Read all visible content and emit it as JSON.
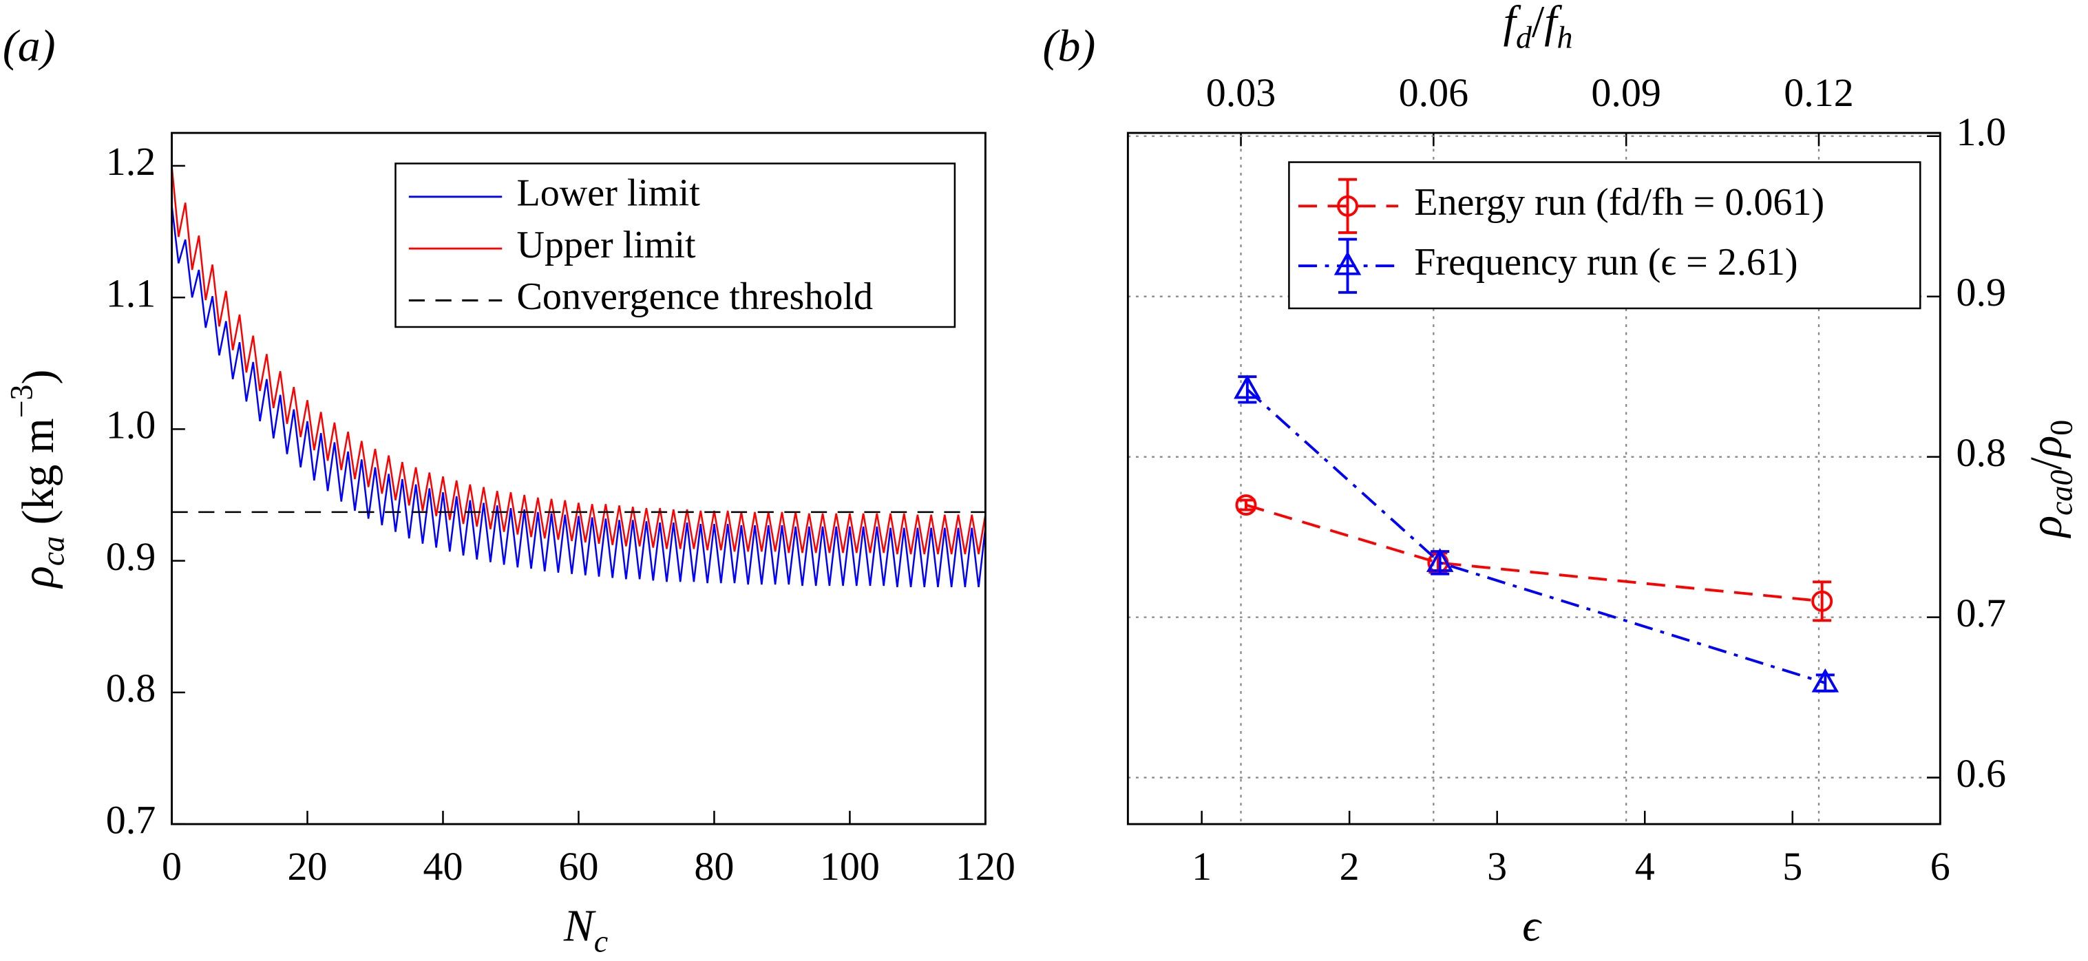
{
  "chart_data": [
    {
      "type": "line",
      "label": "(a)",
      "x": [
        0,
        1,
        2,
        3,
        4,
        5,
        6,
        7,
        8,
        9,
        10,
        11,
        12,
        13,
        14,
        15,
        16,
        17,
        18,
        19,
        20,
        21,
        22,
        23,
        24,
        25,
        26,
        27,
        28,
        29,
        30,
        31,
        32,
        33,
        34,
        35,
        36,
        37,
        38,
        39,
        40,
        41,
        42,
        43,
        44,
        45,
        46,
        47,
        48,
        49,
        50,
        51,
        52,
        53,
        54,
        55,
        56,
        57,
        58,
        59,
        60,
        61,
        62,
        63,
        64,
        65,
        66,
        67,
        68,
        69,
        70,
        71,
        72,
        73,
        74,
        75,
        76,
        77,
        78,
        79,
        80,
        81,
        82,
        83,
        84,
        85,
        86,
        87,
        88,
        89,
        90,
        91,
        92,
        93,
        94,
        95,
        96,
        97,
        98,
        99,
        100,
        101,
        102,
        103,
        104,
        105,
        106,
        107,
        108,
        109,
        110,
        111,
        112,
        113,
        114,
        115,
        116,
        117,
        118,
        119,
        120
      ],
      "series": [
        {
          "name": "Lower limit",
          "color": "#0000ff",
          "values": [
            1.17,
            1.126,
            1.144,
            1.1,
            1.121,
            1.077,
            1.101,
            1.056,
            1.082,
            1.038,
            1.066,
            1.021,
            1.051,
            1.006,
            1.038,
            0.993,
            1.026,
            0.981,
            1.015,
            0.971,
            1.006,
            0.961,
            0.997,
            0.953,
            0.99,
            0.945,
            0.983,
            0.938,
            0.977,
            0.932,
            0.971,
            0.927,
            0.966,
            0.922,
            0.962,
            0.917,
            0.958,
            0.913,
            0.955,
            0.91,
            0.952,
            0.907,
            0.949,
            0.904,
            0.946,
            0.901,
            0.944,
            0.899,
            0.942,
            0.897,
            0.94,
            0.895,
            0.939,
            0.894,
            0.937,
            0.892,
            0.936,
            0.891,
            0.935,
            0.89,
            0.934,
            0.889,
            0.933,
            0.888,
            0.932,
            0.887,
            0.931,
            0.886,
            0.931,
            0.886,
            0.93,
            0.885,
            0.929,
            0.884,
            0.929,
            0.884,
            0.929,
            0.884,
            0.928,
            0.883,
            0.928,
            0.883,
            0.928,
            0.883,
            0.927,
            0.882,
            0.927,
            0.882,
            0.927,
            0.882,
            0.927,
            0.882,
            0.926,
            0.881,
            0.926,
            0.881,
            0.926,
            0.881,
            0.926,
            0.881,
            0.926,
            0.881,
            0.926,
            0.881,
            0.926,
            0.881,
            0.925,
            0.88,
            0.925,
            0.88,
            0.925,
            0.88,
            0.925,
            0.88,
            0.925,
            0.88,
            0.925,
            0.88,
            0.925,
            0.88,
            0.925
          ]
        },
        {
          "name": "Upper limit",
          "color": "#ff0000",
          "values": [
            1.2,
            1.146,
            1.172,
            1.121,
            1.147,
            1.098,
            1.125,
            1.078,
            1.105,
            1.06,
            1.087,
            1.043,
            1.071,
            1.029,
            1.057,
            1.016,
            1.044,
            1.004,
            1.032,
            0.994,
            1.022,
            0.984,
            1.013,
            0.976,
            1.005,
            0.969,
            0.998,
            0.962,
            0.991,
            0.956,
            0.985,
            0.951,
            0.98,
            0.946,
            0.975,
            0.942,
            0.971,
            0.938,
            0.967,
            0.934,
            0.964,
            0.931,
            0.961,
            0.928,
            0.958,
            0.926,
            0.956,
            0.924,
            0.953,
            0.922,
            0.952,
            0.92,
            0.95,
            0.918,
            0.948,
            0.917,
            0.947,
            0.916,
            0.946,
            0.915,
            0.944,
            0.914,
            0.943,
            0.913,
            0.943,
            0.912,
            0.942,
            0.911,
            0.941,
            0.911,
            0.94,
            0.91,
            0.94,
            0.909,
            0.939,
            0.909,
            0.939,
            0.909,
            0.938,
            0.908,
            0.938,
            0.908,
            0.938,
            0.907,
            0.937,
            0.907,
            0.937,
            0.907,
            0.937,
            0.907,
            0.937,
            0.906,
            0.937,
            0.906,
            0.936,
            0.906,
            0.936,
            0.906,
            0.936,
            0.906,
            0.936,
            0.906,
            0.936,
            0.906,
            0.936,
            0.906,
            0.936,
            0.905,
            0.936,
            0.905,
            0.935,
            0.905,
            0.935,
            0.905,
            0.935,
            0.905,
            0.935,
            0.905,
            0.935,
            0.905,
            0.935
          ]
        }
      ],
      "hline": {
        "name": "Convergence threshold",
        "value": 0.937,
        "color": "#000000",
        "dash": true
      },
      "xlim": [
        0,
        120
      ],
      "xticks": [
        0,
        20,
        40,
        60,
        80,
        100,
        120
      ],
      "ylim": [
        0.7,
        1.225
      ],
      "yticks": [
        0.7,
        0.8,
        0.9,
        {
          "value": 1,
          "label": "1.0"
        },
        1.1,
        1.2
      ],
      "xlabel": [
        {
          "t": "N",
          "italic": true
        },
        {
          "t": "c",
          "sub": true,
          "italic": true
        }
      ],
      "ylabel": [
        {
          "t": "ρ",
          "italic": true
        },
        {
          "t": "ca",
          "sub": true,
          "italic": true
        },
        {
          "t": " (kg m"
        },
        {
          "t": "−3",
          "sup": true
        },
        {
          "t": ")"
        }
      ],
      "legend": "upper right"
    },
    {
      "type": "errorbar",
      "label": "(b)",
      "series": [
        {
          "name": "Energy run (fd/fh = 0.061)",
          "color": "#ff0000",
          "marker": "circle",
          "dash": "dashed",
          "axis_x": "x",
          "x": [
            1.3,
            2.6,
            5.2
          ],
          "values": [
            0.77,
            0.734,
            0.71
          ],
          "errors": [
            0.003,
            0.006,
            0.012
          ]
        },
        {
          "name": "Frequency run (ϵ = 2.61)",
          "color": "#0000ff",
          "marker": "triangle",
          "dash": "dashdot",
          "axis_x": "x2",
          "x": [
            0.031,
            0.061,
            0.121
          ],
          "values": [
            0.842,
            0.734,
            0.659
          ],
          "errors": [
            0.008,
            0.007,
            0.005
          ]
        }
      ],
      "xlim": [
        0.5,
        6
      ],
      "xticks": [
        1,
        2,
        3,
        4,
        5,
        6
      ],
      "x2lim": [
        0.0124,
        0.1389
      ],
      "x2ticks": [
        0.03,
        0.06,
        0.09,
        0.12
      ],
      "ylim": [
        0.571,
        1.002
      ],
      "yticks": [
        0.6,
        0.7,
        0.8,
        0.9,
        {
          "value": 1,
          "label": "1.0"
        }
      ],
      "y_side": "right",
      "grid": true,
      "xlabel": [
        {
          "t": "ϵ",
          "italic": true
        }
      ],
      "x2label": [
        {
          "t": "f",
          "italic": true
        },
        {
          "t": "d",
          "sub": true,
          "italic": true
        },
        {
          "t": "/"
        },
        {
          "t": "f",
          "italic": true
        },
        {
          "t": "h",
          "sub": true,
          "italic": true
        }
      ],
      "ylabel": [
        {
          "t": "ρ",
          "italic": true
        },
        {
          "t": "ca0",
          "sub": true,
          "italic": true
        },
        {
          "t": "/"
        },
        {
          "t": "ρ",
          "italic": true
        },
        {
          "t": "0",
          "sub": true
        }
      ],
      "legend": "upper right"
    }
  ]
}
